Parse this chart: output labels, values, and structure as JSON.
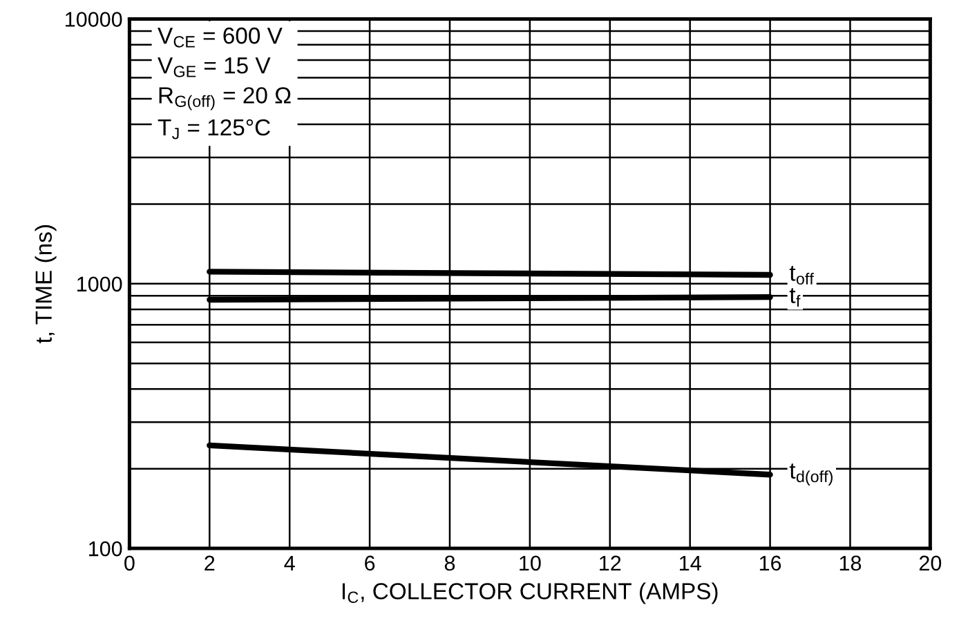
{
  "chart_data": {
    "type": "line",
    "xlabel": "I$_{C}$, COLLECTOR CURRENT (AMPS)",
    "ylabel": "t, TIME (ns)",
    "log": "y",
    "xlim": [
      0,
      20
    ],
    "xticks": [
      0,
      2,
      4,
      6,
      8,
      10,
      12,
      14,
      16,
      18,
      20
    ],
    "ylim": [
      100,
      10000
    ],
    "yticks": [
      100,
      1000,
      10000
    ],
    "grid": true,
    "x": [
      2,
      16
    ],
    "series": [
      {
        "name": "t$_{off}$",
        "color": "#000000",
        "values": [
          1110,
          1080
        ]
      },
      {
        "name": "t$_{f}$",
        "color": "#000000",
        "values": [
          870,
          890
        ]
      },
      {
        "name": "t$_{d(off)}$",
        "color": "#000000",
        "values": [
          245,
          190
        ]
      }
    ],
    "annotations": [
      "V$_{CE}$ = 600 V\nV$_{GE}$ = 15 V\nR$_{G(off)}$ = 20 Ω\nT$_{J}$ = 125°C"
    ]
  }
}
